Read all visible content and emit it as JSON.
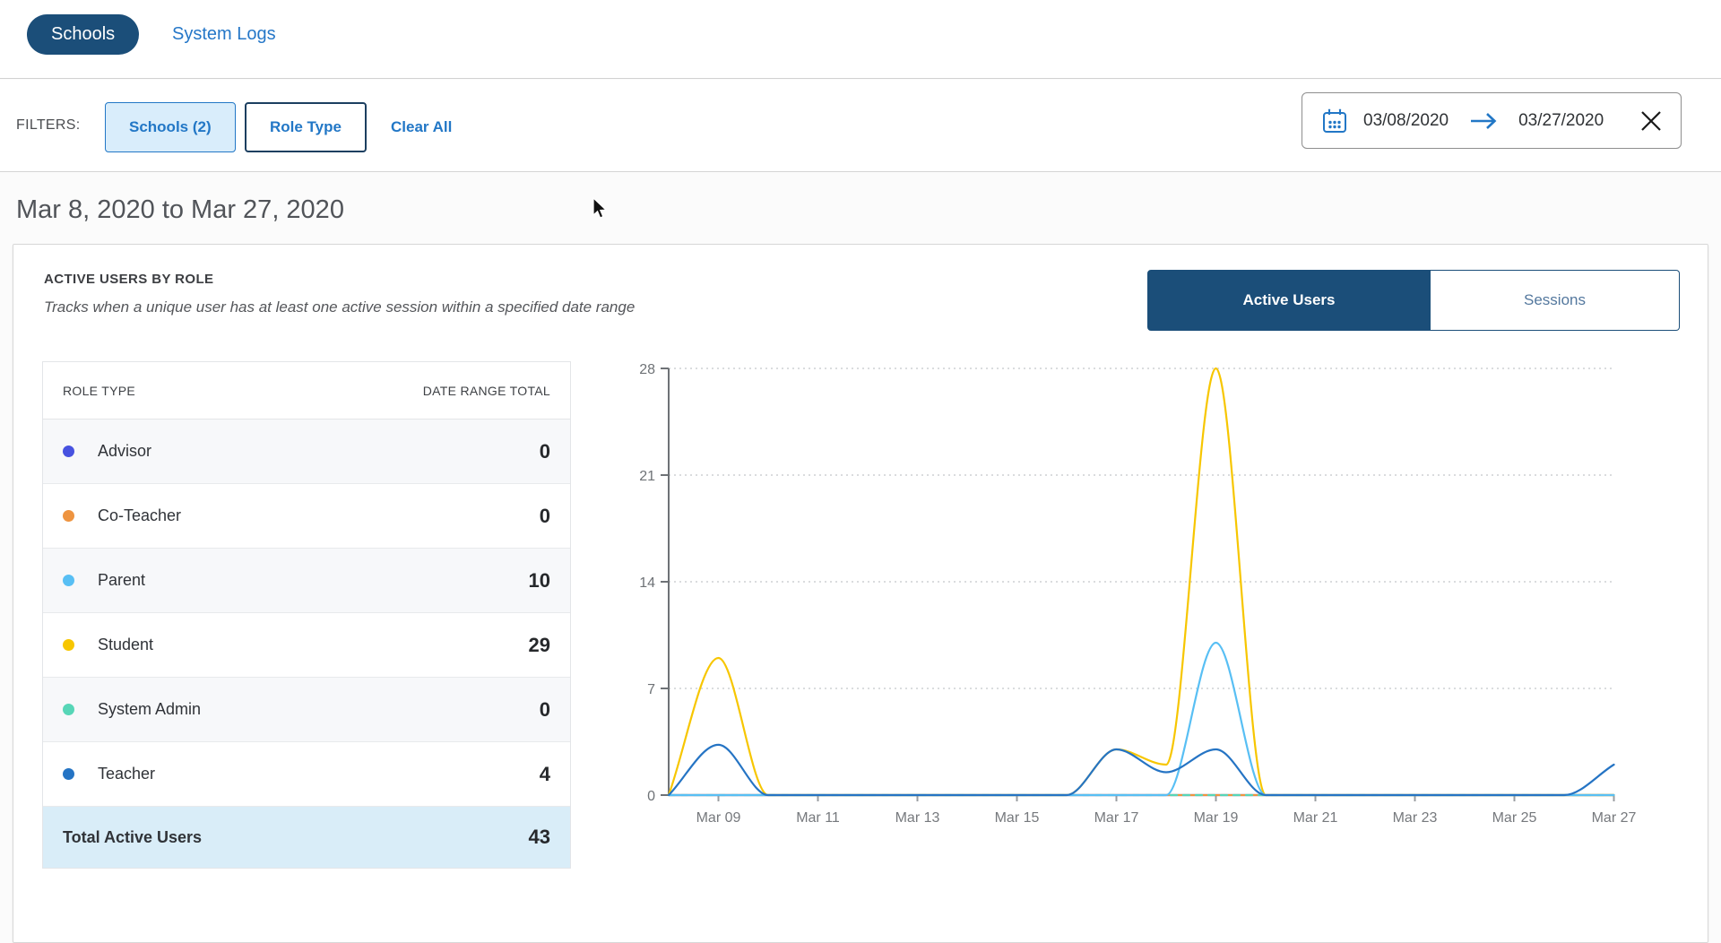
{
  "nav": {
    "schools_label": "Schools",
    "system_logs_label": "System Logs"
  },
  "filters": {
    "label": "FILTERS:",
    "schools_button": "Schools (2)",
    "role_type_button": "Role Type",
    "clear_all": "Clear All",
    "date_range": {
      "start": "03/08/2020",
      "end": "03/27/2020"
    }
  },
  "page": {
    "heading": "Mar 8, 2020 to Mar 27, 2020"
  },
  "card": {
    "title": "ACTIVE USERS BY ROLE",
    "subtitle": "Tracks when a unique user has at least one active session within a specified date range",
    "tabs": [
      {
        "label": "Active Users",
        "active": true
      },
      {
        "label": "Sessions",
        "active": false
      }
    ]
  },
  "table": {
    "headers": [
      "ROLE TYPE",
      "DATE RANGE TOTAL"
    ],
    "rows": [
      {
        "label": "Advisor",
        "value": "0",
        "color": "#4752e0"
      },
      {
        "label": "Co-Teacher",
        "value": "0",
        "color": "#ee9440"
      },
      {
        "label": "Parent",
        "value": "10",
        "color": "#58bff4"
      },
      {
        "label": "Student",
        "value": "29",
        "color": "#f7c600"
      },
      {
        "label": "System Admin",
        "value": "0",
        "color": "#57d6b7"
      },
      {
        "label": "Teacher",
        "value": "4",
        "color": "#2574c4"
      }
    ],
    "total": {
      "label": "Total Active Users",
      "value": "43"
    }
  },
  "chart_data": {
    "type": "line",
    "x": [
      "Mar 08",
      "Mar 09",
      "Mar 10",
      "Mar 11",
      "Mar 12",
      "Mar 13",
      "Mar 14",
      "Mar 15",
      "Mar 16",
      "Mar 17",
      "Mar 18",
      "Mar 19",
      "Mar 20",
      "Mar 21",
      "Mar 22",
      "Mar 23",
      "Mar 24",
      "Mar 25",
      "Mar 26",
      "Mar 27"
    ],
    "x_tick_labels": [
      "Mar 09",
      "Mar 11",
      "Mar 13",
      "Mar 15",
      "Mar 17",
      "Mar 19",
      "Mar 21",
      "Mar 23",
      "Mar 25",
      "Mar 27"
    ],
    "x_tick_indices": [
      1,
      3,
      5,
      7,
      9,
      11,
      13,
      15,
      17,
      19
    ],
    "y_ticks": [
      0,
      7,
      14,
      21,
      28
    ],
    "ylim": [
      0,
      28
    ],
    "grid": "dotted horizontal",
    "legend": "none (legend is the role table)",
    "series": [
      {
        "name": "Advisor",
        "color": "#4752e0",
        "values": [
          0,
          0,
          0,
          0,
          0,
          0,
          0,
          0,
          0,
          0,
          0,
          0,
          0,
          0,
          0,
          0,
          0,
          0,
          0,
          0
        ]
      },
      {
        "name": "Co-Teacher",
        "color": "#ee9440",
        "values": [
          0,
          0,
          0,
          0,
          0,
          0,
          0,
          0,
          0,
          0,
          0,
          0,
          0,
          0,
          0,
          0,
          0,
          0,
          0,
          0
        ]
      },
      {
        "name": "System Admin",
        "color": "#57d6b7",
        "dash": "7 7",
        "values": [
          0,
          0,
          0,
          0,
          0,
          0,
          0,
          0,
          0,
          0,
          0,
          0,
          0,
          0,
          0,
          0,
          0,
          0,
          0,
          0
        ]
      },
      {
        "name": "Student",
        "color": "#f7c600",
        "values": [
          0,
          9,
          0,
          0,
          0,
          0,
          0,
          0,
          0,
          3,
          2,
          28,
          0,
          0,
          0,
          0,
          0,
          0,
          0,
          0
        ]
      },
      {
        "name": "Parent",
        "color": "#58bff4",
        "values": [
          0,
          0,
          0,
          0,
          0,
          0,
          0,
          0,
          0,
          0,
          0,
          10,
          0,
          0,
          0,
          0,
          0,
          0,
          0,
          0
        ]
      },
      {
        "name": "Teacher",
        "color": "#2574c4",
        "values": [
          0,
          3.3,
          0,
          0,
          0,
          0,
          0,
          0,
          0,
          3,
          1.5,
          3,
          0,
          0,
          0,
          0,
          0,
          0,
          0,
          2
        ]
      }
    ]
  },
  "colors": {
    "navy": "#1b4e79",
    "link_blue": "#2577c8",
    "filter_blue": "#2277c6",
    "total_row_bg": "#d9edf8",
    "axis_gray": "#6e7276"
  }
}
